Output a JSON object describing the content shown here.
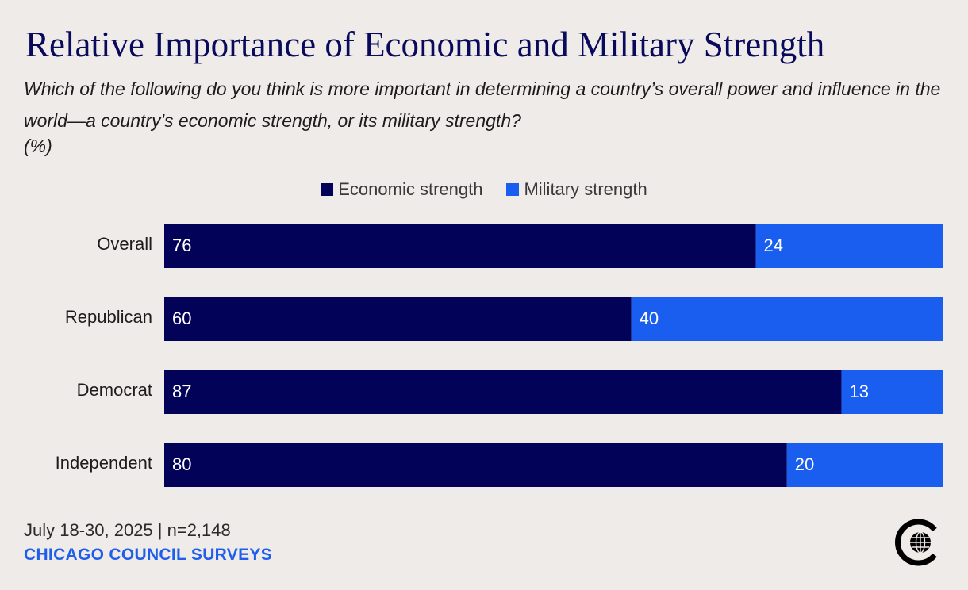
{
  "title": "Relative Importance of Economic and Military Strength",
  "subtitle": "Which of the following do you think is more important in determining a country’s overall power and influence in the world—a country's economic strength, or its military strength?",
  "unit": "(%)",
  "colors": {
    "economic": "#020258",
    "military": "#1a5ef0"
  },
  "chart_data": {
    "type": "bar",
    "orientation": "horizontal",
    "stacked": true,
    "categories": [
      "Overall",
      "Republican",
      "Democrat",
      "Independent"
    ],
    "series": [
      {
        "name": "Economic strength",
        "values": [
          76,
          60,
          87,
          80
        ]
      },
      {
        "name": "Military strength",
        "values": [
          24,
          40,
          13,
          20
        ]
      }
    ],
    "xlim": [
      0,
      100
    ],
    "legend_position": "top-center"
  },
  "footer": {
    "date": "July 18-30, 2025 | n=2,148",
    "source": "CHICAGO COUNCIL SURVEYS"
  },
  "logo_icon": "globe-c-logo-icon"
}
